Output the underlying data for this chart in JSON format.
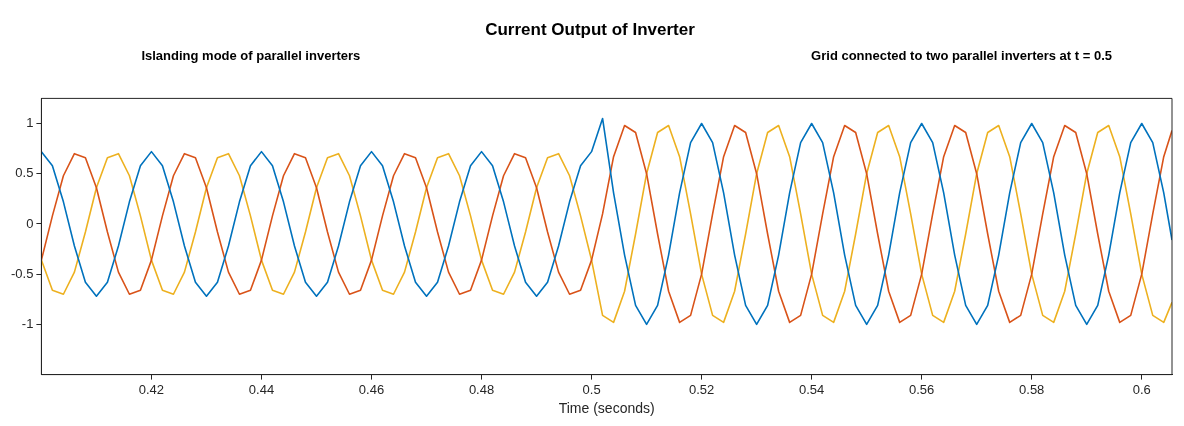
{
  "chart_data": {
    "type": "line",
    "title": "Current Output of Inverter",
    "xlabel": "Time (seconds)",
    "annotations": [
      "Islanding mode of parallel inverters",
      "Grid connected to two parallel inverters at t = 0.5"
    ],
    "xlim": [
      0.4,
      0.6055
    ],
    "xticks": [
      0.42,
      0.44,
      0.46,
      0.48,
      0.5,
      0.52,
      0.54,
      0.56,
      0.58,
      0.6
    ],
    "ylim": [
      -1.5,
      1.25
    ],
    "yticks": [
      -1,
      -0.5,
      0,
      0.5,
      1
    ],
    "grid": false,
    "legend": false,
    "marker": "none",
    "line_style": "solid",
    "x": [
      0.4,
      0.402,
      0.404,
      0.406,
      0.408,
      0.41,
      0.412,
      0.414,
      0.416,
      0.418,
      0.42,
      0.422,
      0.424,
      0.426,
      0.428,
      0.43,
      0.432,
      0.434,
      0.436,
      0.438,
      0.44,
      0.442,
      0.444,
      0.446,
      0.448,
      0.45,
      0.452,
      0.454,
      0.456,
      0.458,
      0.46,
      0.462,
      0.464,
      0.466,
      0.468,
      0.47,
      0.472,
      0.474,
      0.476,
      0.478,
      0.48,
      0.482,
      0.484,
      0.486,
      0.488,
      0.49,
      0.492,
      0.494,
      0.496,
      0.498,
      0.5,
      0.502,
      0.504,
      0.506,
      0.508,
      0.51,
      0.512,
      0.514,
      0.516,
      0.518,
      0.52,
      0.522,
      0.524,
      0.526,
      0.528,
      0.53,
      0.532,
      0.534,
      0.536,
      0.538,
      0.54,
      0.542,
      0.544,
      0.546,
      0.548,
      0.55,
      0.552,
      0.554,
      0.556,
      0.558,
      0.56,
      0.562,
      0.564,
      0.566,
      0.568,
      0.57,
      0.572,
      0.574,
      0.576,
      0.578,
      0.58,
      0.582,
      0.584,
      0.586,
      0.588,
      0.59,
      0.592,
      0.594,
      0.596,
      0.598,
      0.6,
      0.602,
      0.604,
      0.6055
    ],
    "series": [
      {
        "color": "#0072bd",
        "values": [
          0.72,
          0.58,
          0.22,
          -0.22,
          -0.58,
          -0.72,
          -0.58,
          -0.22,
          0.22,
          0.58,
          0.72,
          0.58,
          0.22,
          -0.22,
          -0.58,
          -0.72,
          -0.58,
          -0.22,
          0.22,
          0.58,
          0.72,
          0.58,
          0.22,
          -0.22,
          -0.58,
          -0.72,
          -0.58,
          -0.22,
          0.22,
          0.58,
          0.72,
          0.58,
          0.22,
          -0.22,
          -0.58,
          -0.72,
          -0.58,
          -0.22,
          0.22,
          0.58,
          0.72,
          0.58,
          0.22,
          -0.22,
          -0.58,
          -0.72,
          -0.58,
          -0.22,
          0.22,
          0.58,
          0.72,
          1.05,
          0.31,
          -0.31,
          -0.81,
          -1,
          -0.81,
          -0.31,
          0.31,
          0.81,
          1,
          0.81,
          0.31,
          -0.31,
          -0.81,
          -1,
          -0.81,
          -0.31,
          0.31,
          0.81,
          1,
          0.81,
          0.31,
          -0.31,
          -0.81,
          -1,
          -0.81,
          -0.31,
          0.31,
          0.81,
          1,
          0.81,
          0.31,
          -0.31,
          -0.81,
          -1,
          -0.81,
          -0.31,
          0.31,
          0.81,
          1,
          0.81,
          0.31,
          -0.31,
          -0.81,
          -1,
          -0.81,
          -0.31,
          0.31,
          0.81,
          1,
          0.81,
          0.31,
          -0.16
        ]
      },
      {
        "color": "#d95319",
        "values": [
          -0.36,
          0.08,
          0.48,
          0.7,
          0.66,
          0.36,
          -0.08,
          -0.48,
          -0.7,
          -0.66,
          -0.36,
          0.08,
          0.48,
          0.7,
          0.66,
          0.36,
          -0.08,
          -0.48,
          -0.7,
          -0.66,
          -0.36,
          0.08,
          0.48,
          0.7,
          0.66,
          0.36,
          -0.08,
          -0.48,
          -0.7,
          -0.66,
          -0.36,
          0.08,
          0.48,
          0.7,
          0.66,
          0.36,
          -0.08,
          -0.48,
          -0.7,
          -0.66,
          -0.36,
          0.08,
          0.48,
          0.7,
          0.66,
          0.36,
          -0.08,
          -0.48,
          -0.7,
          -0.66,
          -0.36,
          0.1,
          0.67,
          0.98,
          0.91,
          0.5,
          -0.1,
          -0.67,
          -0.98,
          -0.91,
          -0.5,
          0.1,
          0.67,
          0.98,
          0.91,
          0.5,
          -0.1,
          -0.67,
          -0.98,
          -0.91,
          -0.5,
          0.1,
          0.67,
          0.98,
          0.91,
          0.5,
          -0.1,
          -0.67,
          -0.98,
          -0.91,
          -0.5,
          0.1,
          0.67,
          0.98,
          0.91,
          0.5,
          -0.1,
          -0.67,
          -0.98,
          -0.91,
          -0.5,
          0.1,
          0.67,
          0.98,
          0.91,
          0.5,
          -0.1,
          -0.67,
          -0.98,
          -0.91,
          -0.5,
          0.1,
          0.67,
          0.93
        ]
      },
      {
        "color": "#edb120",
        "values": [
          -0.36,
          -0.66,
          -0.7,
          -0.48,
          -0.08,
          0.36,
          0.66,
          0.7,
          0.48,
          0.08,
          -0.36,
          -0.66,
          -0.7,
          -0.48,
          -0.08,
          0.36,
          0.66,
          0.7,
          0.48,
          0.08,
          -0.36,
          -0.66,
          -0.7,
          -0.48,
          -0.08,
          0.36,
          0.66,
          0.7,
          0.48,
          0.08,
          -0.36,
          -0.66,
          -0.7,
          -0.48,
          -0.08,
          0.36,
          0.66,
          0.7,
          0.48,
          0.08,
          -0.36,
          -0.66,
          -0.7,
          -0.48,
          -0.08,
          0.36,
          0.66,
          0.7,
          0.48,
          0.08,
          -0.36,
          -0.91,
          -0.98,
          -0.67,
          -0.1,
          0.5,
          0.91,
          0.98,
          0.67,
          0.1,
          -0.5,
          -0.91,
          -0.98,
          -0.67,
          -0.1,
          0.5,
          0.91,
          0.98,
          0.67,
          0.1,
          -0.5,
          -0.91,
          -0.98,
          -0.67,
          -0.1,
          0.5,
          0.91,
          0.98,
          0.67,
          0.1,
          -0.5,
          -0.91,
          -0.98,
          -0.67,
          -0.1,
          0.5,
          0.91,
          0.98,
          0.67,
          0.1,
          -0.5,
          -0.91,
          -0.98,
          -0.67,
          -0.1,
          0.5,
          0.91,
          0.98,
          0.67,
          0.1,
          -0.5,
          -0.91,
          -0.98,
          -0.78
        ]
      }
    ]
  }
}
